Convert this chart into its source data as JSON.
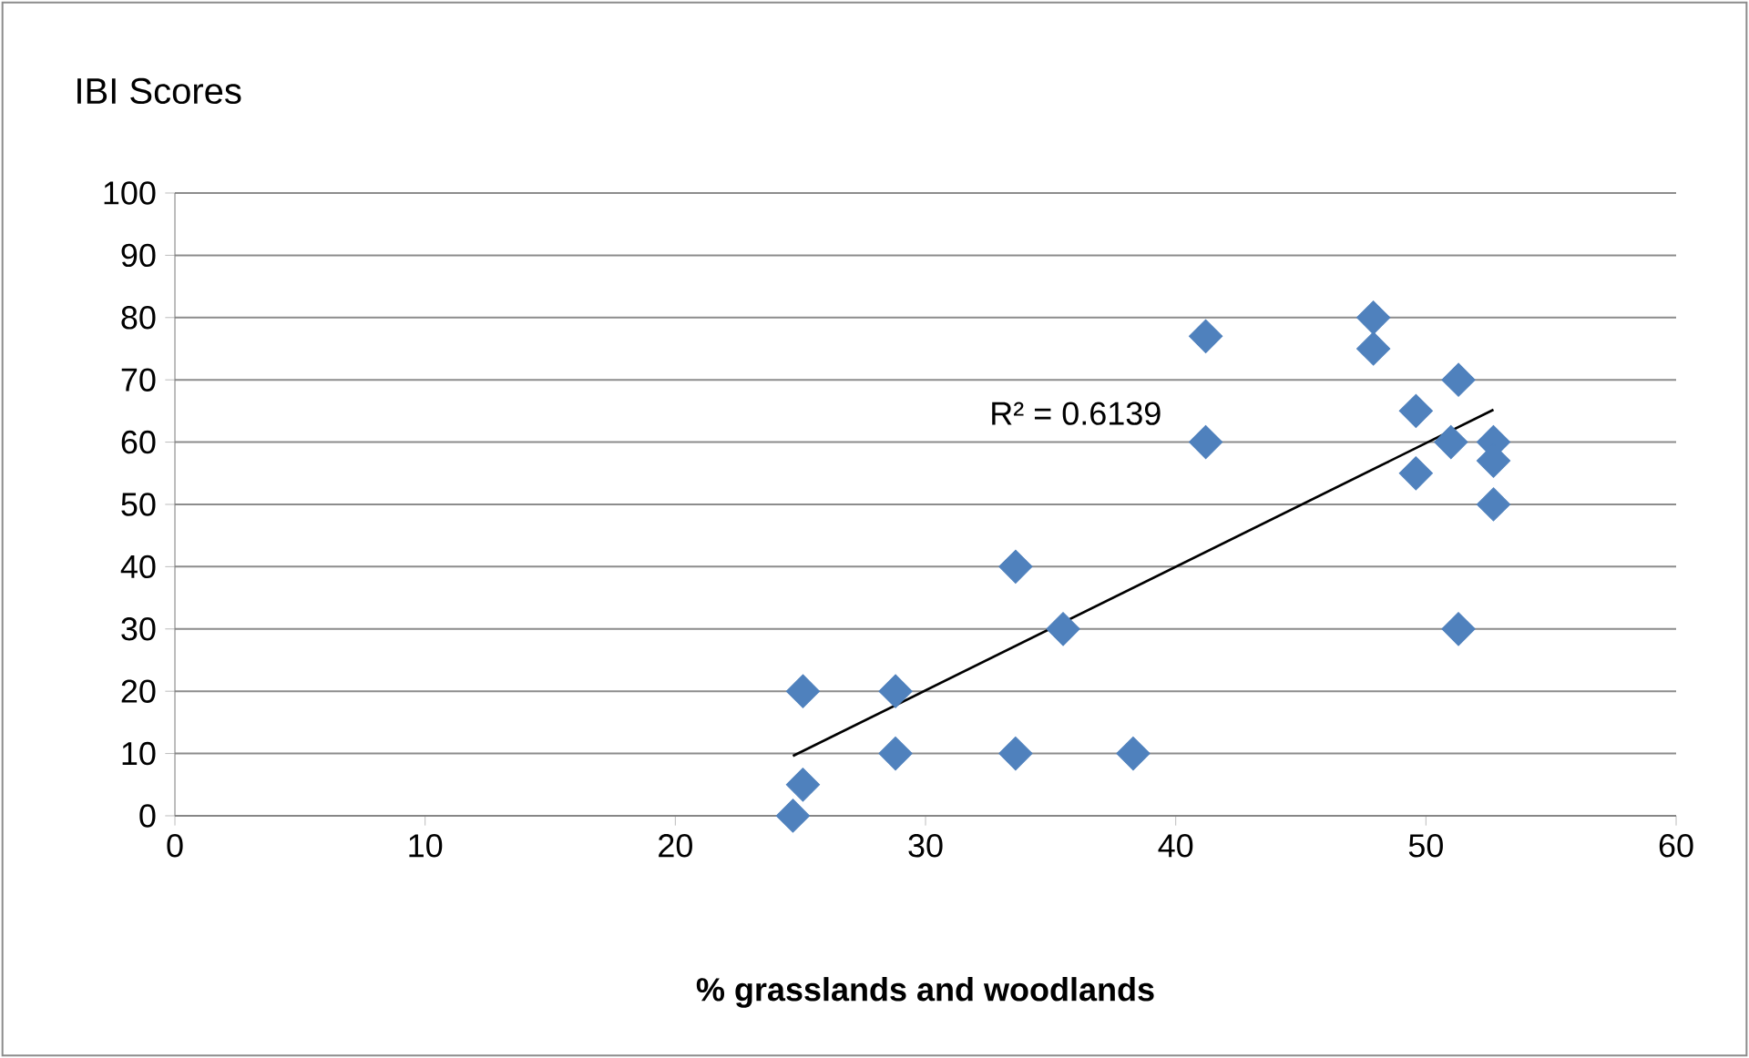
{
  "chart_data": {
    "type": "scatter",
    "xlabel": "% grasslands and woodlands",
    "ylabel": "IBI Scores",
    "xlim": [
      0,
      60
    ],
    "xticks": [
      0,
      10,
      20,
      30,
      40,
      50,
      60
    ],
    "ylim": [
      0,
      100
    ],
    "yticks": [
      0,
      10,
      20,
      30,
      40,
      50,
      60,
      70,
      80,
      90,
      100
    ],
    "grid": "y",
    "marker": "diamond",
    "series": [
      {
        "color": "#4f81bd",
        "x": [
          24.7,
          25.1,
          25.1,
          28.8,
          28.8,
          33.6,
          33.6,
          35.5,
          38.3,
          41.2,
          41.2,
          47.9,
          47.9,
          49.6,
          49.6,
          51.0,
          51.3,
          51.3,
          52.7,
          52.7,
          52.7
        ],
        "values": [
          0,
          5,
          20,
          20,
          10,
          40,
          10,
          30,
          10,
          60,
          77,
          80,
          75,
          65,
          55,
          60,
          70,
          30,
          60,
          57,
          50
        ]
      },
      {
        "type": "line",
        "color": "#000000",
        "marker": "none",
        "x": [
          24.7,
          52.7
        ],
        "values": [
          9.6,
          65.2
        ]
      }
    ],
    "annotations": [
      "R² = 0.6139"
    ]
  }
}
